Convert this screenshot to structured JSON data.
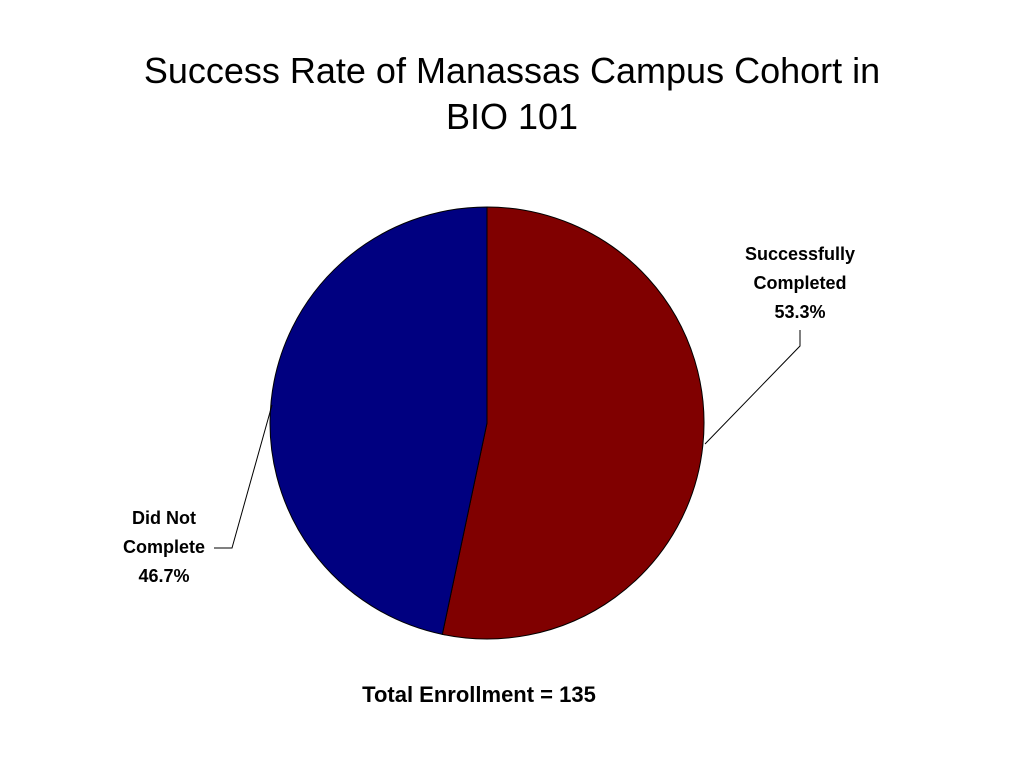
{
  "colors": {
    "successfully_completed": "#800000",
    "did_not_complete": "#000080",
    "outline": "#000000",
    "background": "#ffffff"
  },
  "chart_data": {
    "type": "pie",
    "title_lines": [
      "Success Rate of Manassas Campus Cohort in",
      "BIO 101"
    ],
    "slices": [
      {
        "label_lines": [
          "Successfully",
          "Completed"
        ],
        "percent_label": "53.3%",
        "value": 53.3,
        "color": "#800000"
      },
      {
        "label_lines": [
          "Did Not",
          "Complete"
        ],
        "percent_label": "46.7%",
        "value": 46.7,
        "color": "#000080"
      }
    ],
    "start_angle": "12 o'clock",
    "direction": "clockwise",
    "legend": "none",
    "note": "Total Enrollment = 135"
  }
}
